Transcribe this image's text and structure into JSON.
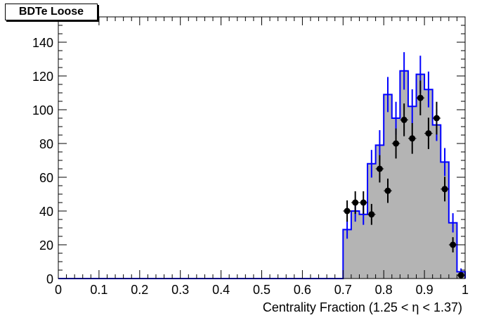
{
  "chart_data": {
    "type": "histogram",
    "title": "BDTe Loose",
    "xlabel": "Centrality Fraction (1.25 <   η < 1.37)",
    "ylabel": "",
    "xlim": [
      0,
      1
    ],
    "ylim": [
      0,
      155
    ],
    "x_ticks": [
      0,
      0.1,
      0.2,
      0.3,
      0.4,
      0.5,
      0.6,
      0.7,
      0.8,
      0.9,
      1
    ],
    "x_tick_labels": [
      "0",
      "0.1",
      "0.2",
      "0.3",
      "0.4",
      "0.5",
      "0.6",
      "0.7",
      "0.8",
      "0.9",
      "1"
    ],
    "y_ticks": [
      0,
      20,
      40,
      60,
      80,
      100,
      120,
      140
    ],
    "y_tick_labels": [
      "0",
      "20",
      "40",
      "60",
      "80",
      "100",
      "120",
      "140"
    ],
    "grid": false,
    "bin_width": 0.02,
    "histogram": {
      "name": "",
      "fill": "#b4b4b4",
      "line": "#0000ff",
      "bin_centers": [
        0.71,
        0.73,
        0.75,
        0.77,
        0.79,
        0.81,
        0.83,
        0.85,
        0.87,
        0.89,
        0.91,
        0.93,
        0.95,
        0.97,
        0.99
      ],
      "values": [
        29,
        40,
        38,
        68,
        79,
        109,
        95,
        123,
        102,
        121,
        112,
        91,
        69,
        33,
        4
      ],
      "errors": [
        5.4,
        6.3,
        6.2,
        8.2,
        8.9,
        10.4,
        9.7,
        11.1,
        10.1,
        11.0,
        10.6,
        9.5,
        8.3,
        5.7,
        2.0
      ]
    },
    "points": {
      "name": "",
      "color": "#000000",
      "x": [
        0.71,
        0.73,
        0.75,
        0.77,
        0.79,
        0.81,
        0.83,
        0.85,
        0.87,
        0.89,
        0.91,
        0.93,
        0.95,
        0.97,
        0.99
      ],
      "y": [
        40,
        45,
        45,
        38,
        65,
        52,
        80,
        94,
        83,
        107,
        86,
        95,
        53,
        20,
        2
      ],
      "errors": [
        6.3,
        6.7,
        6.7,
        6.2,
        8.1,
        7.2,
        8.9,
        9.7,
        9.1,
        10.3,
        9.3,
        9.7,
        7.3,
        4.5,
        1.4
      ]
    }
  }
}
